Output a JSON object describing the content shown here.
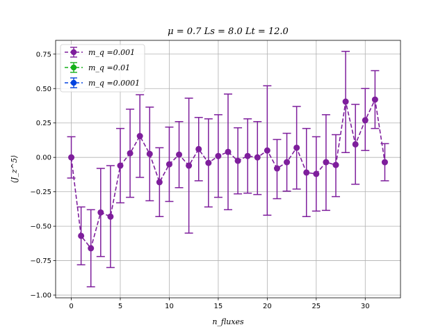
{
  "chart_data": {
    "type": "scatter",
    "title": "μ = 0.7 Ls = 8.0 Lt = 12.0",
    "xlabel": "n_fluxes",
    "ylabel": "⟨J_z^5⟩",
    "xlim": [
      -1.6,
      33.6
    ],
    "ylim": [
      -1.02,
      0.85
    ],
    "x_ticks": [
      0,
      5,
      10,
      15,
      20,
      25,
      30
    ],
    "y_ticks": [
      -1.0,
      -0.75,
      -0.5,
      -0.25,
      0.0,
      0.25,
      0.5,
      0.75
    ],
    "x_tick_labels": [
      "0",
      "5",
      "10",
      "15",
      "20",
      "25",
      "30"
    ],
    "y_tick_labels": [
      "−1.00",
      "−0.75",
      "−0.50",
      "−0.25",
      "0.00",
      "0.25",
      "0.50",
      "0.75"
    ],
    "grid": true,
    "legend_position": "top-left",
    "series": [
      {
        "name": "m_q =0.001",
        "color": "#7e1e9c",
        "linestyle": "dashed",
        "x": [
          0,
          1,
          2,
          3,
          4,
          5,
          6,
          7,
          8,
          9,
          10,
          11,
          12,
          13,
          14,
          15,
          16,
          17,
          18,
          19,
          20,
          21,
          22,
          23,
          24,
          25,
          26,
          27,
          28,
          29,
          30,
          31,
          32
        ],
        "y": [
          0.0,
          -0.57,
          -0.66,
          -0.4,
          -0.43,
          -0.06,
          0.03,
          0.155,
          0.025,
          -0.18,
          -0.05,
          0.02,
          -0.06,
          0.06,
          -0.04,
          0.01,
          0.04,
          -0.025,
          0.01,
          0.0,
          0.05,
          -0.08,
          -0.035,
          0.07,
          -0.11,
          -0.12,
          -0.035,
          -0.055,
          0.405,
          0.095,
          0.27,
          0.42,
          -0.035
        ],
        "yerr_low": [
          0.15,
          0.21,
          0.28,
          0.32,
          0.37,
          0.27,
          0.32,
          0.3,
          0.34,
          0.25,
          0.27,
          0.24,
          0.49,
          0.23,
          0.32,
          0.3,
          0.42,
          0.24,
          0.27,
          0.27,
          0.47,
          0.22,
          0.21,
          0.3,
          0.32,
          0.27,
          0.35,
          0.23,
          0.37,
          0.29,
          0.22,
          0.21,
          0.135
        ],
        "yerr_high": [
          0.15,
          0.21,
          0.28,
          0.32,
          0.37,
          0.27,
          0.32,
          0.3,
          0.34,
          0.25,
          0.27,
          0.24,
          0.49,
          0.23,
          0.32,
          0.3,
          0.42,
          0.24,
          0.27,
          0.26,
          0.47,
          0.21,
          0.21,
          0.3,
          0.32,
          0.27,
          0.345,
          0.22,
          0.365,
          0.29,
          0.23,
          0.21,
          0.135
        ]
      },
      {
        "name": "m_q =0.01",
        "color": "#15b01a",
        "linestyle": "dashed",
        "x": [],
        "y": []
      },
      {
        "name": "m_q =0.0001",
        "color": "#0343df",
        "linestyle": "dashed",
        "x": [],
        "y": []
      }
    ]
  }
}
